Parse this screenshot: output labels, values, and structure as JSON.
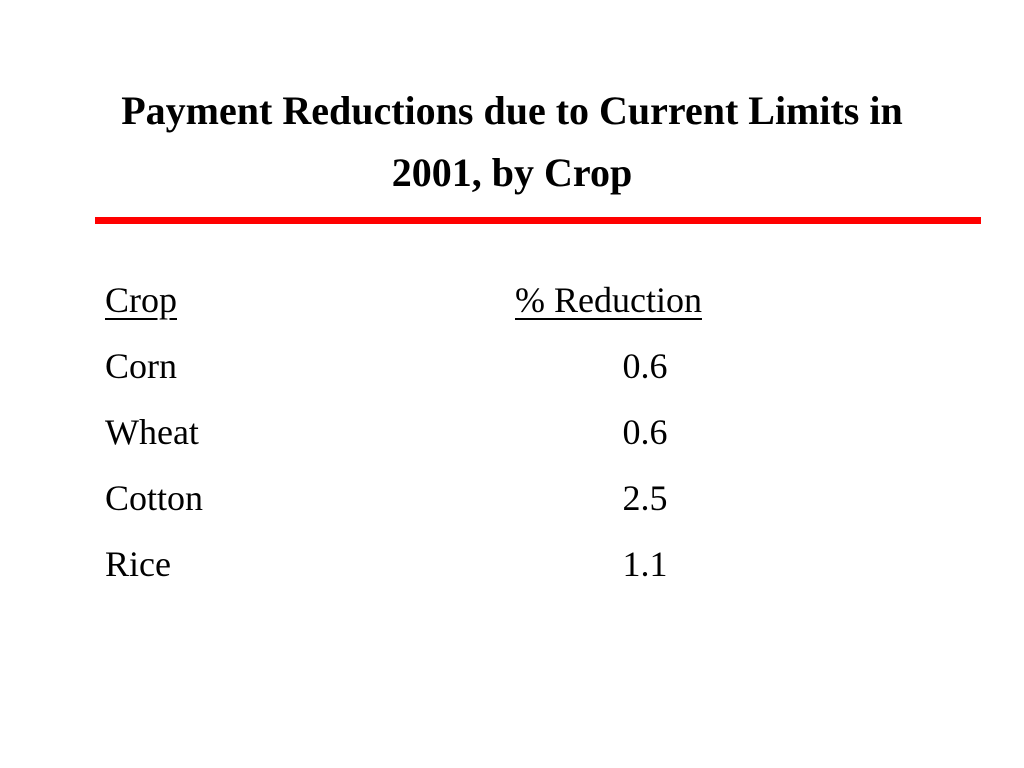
{
  "header": {
    "title": "Payment Reductions due to Current Limits in 2001, by Crop"
  },
  "table": {
    "columns": [
      "Crop",
      "% Reduction"
    ],
    "rows": [
      [
        "Corn",
        0.6
      ],
      [
        "Wheat",
        0.6
      ],
      [
        "Cotton",
        2.5
      ],
      [
        "Rice",
        1.1
      ]
    ]
  }
}
